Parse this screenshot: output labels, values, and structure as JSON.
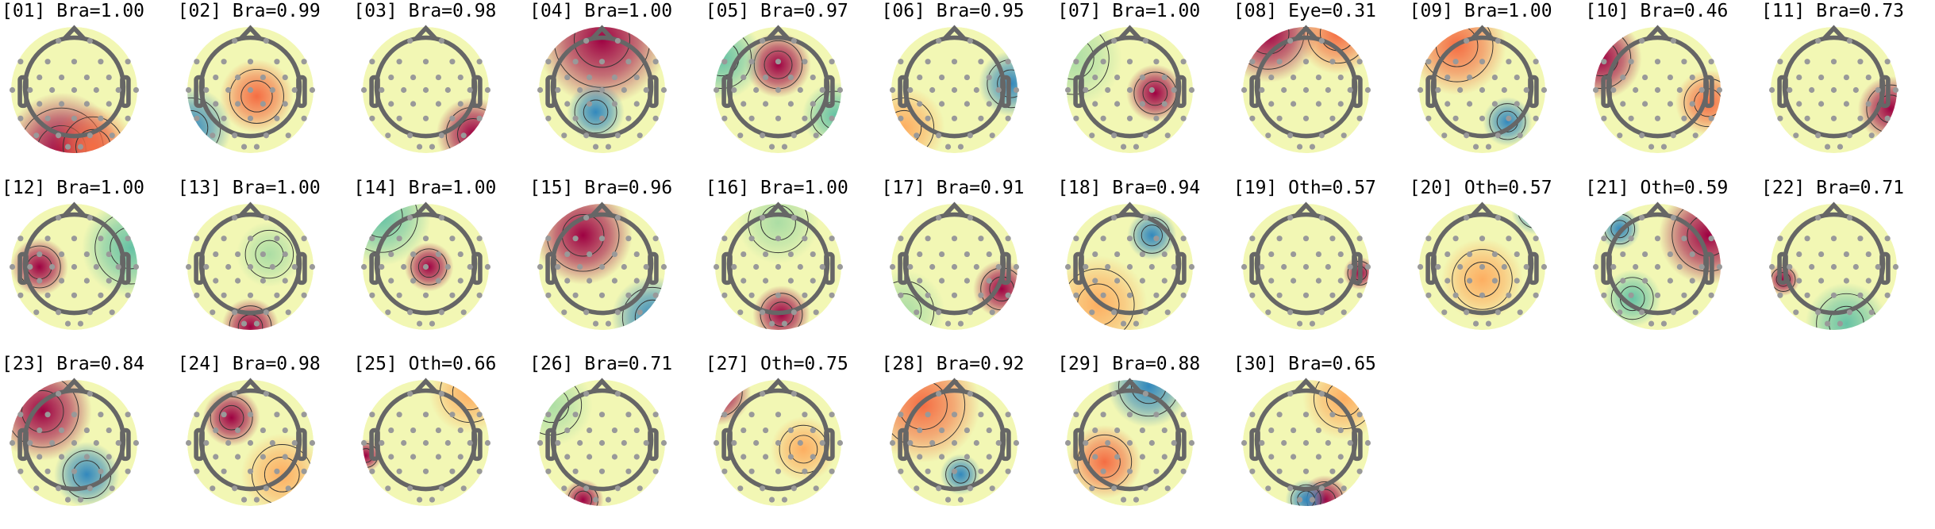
{
  "chart_data": {
    "type": "heatmap",
    "colormap": "Spectral_r",
    "components": [
      {
        "index": "01",
        "label": "Bra",
        "prob": "1.00"
      },
      {
        "index": "02",
        "label": "Bra",
        "prob": "0.99"
      },
      {
        "index": "03",
        "label": "Bra",
        "prob": "0.98"
      },
      {
        "index": "04",
        "label": "Bra",
        "prob": "1.00"
      },
      {
        "index": "05",
        "label": "Bra",
        "prob": "0.97"
      },
      {
        "index": "06",
        "label": "Bra",
        "prob": "0.95"
      },
      {
        "index": "07",
        "label": "Bra",
        "prob": "1.00"
      },
      {
        "index": "08",
        "label": "Eye",
        "prob": "0.31"
      },
      {
        "index": "09",
        "label": "Bra",
        "prob": "1.00"
      },
      {
        "index": "10",
        "label": "Bra",
        "prob": "0.46"
      },
      {
        "index": "11",
        "label": "Bra",
        "prob": "0.73"
      },
      {
        "index": "12",
        "label": "Bra",
        "prob": "1.00"
      },
      {
        "index": "13",
        "label": "Bra",
        "prob": "1.00"
      },
      {
        "index": "14",
        "label": "Bra",
        "prob": "1.00"
      },
      {
        "index": "15",
        "label": "Bra",
        "prob": "0.96"
      },
      {
        "index": "16",
        "label": "Bra",
        "prob": "1.00"
      },
      {
        "index": "17",
        "label": "Bra",
        "prob": "0.91"
      },
      {
        "index": "18",
        "label": "Bra",
        "prob": "0.94"
      },
      {
        "index": "19",
        "label": "Oth",
        "prob": "0.57"
      },
      {
        "index": "20",
        "label": "Oth",
        "prob": "0.57"
      },
      {
        "index": "21",
        "label": "Oth",
        "prob": "0.59"
      },
      {
        "index": "22",
        "label": "Bra",
        "prob": "0.71"
      },
      {
        "index": "23",
        "label": "Bra",
        "prob": "0.84"
      },
      {
        "index": "24",
        "label": "Bra",
        "prob": "0.98"
      },
      {
        "index": "25",
        "label": "Oth",
        "prob": "0.66"
      },
      {
        "index": "26",
        "label": "Bra",
        "prob": "0.71"
      },
      {
        "index": "27",
        "label": "Oth",
        "prob": "0.75"
      },
      {
        "index": "28",
        "label": "Bra",
        "prob": "0.92"
      },
      {
        "index": "29",
        "label": "Bra",
        "prob": "0.88"
      },
      {
        "index": "30",
        "label": "Bra",
        "prob": "0.65"
      }
    ]
  },
  "colors": {
    "head_outline": "#666666",
    "sensor": "#999999",
    "contour": "#333333"
  }
}
